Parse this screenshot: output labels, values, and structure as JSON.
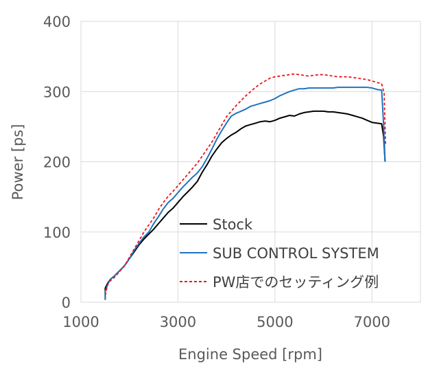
{
  "chart_data": {
    "type": "line",
    "xlabel": "Engine Speed [rpm]",
    "ylabel": "Power [ps]",
    "xlim": [
      1000,
      8000
    ],
    "ylim": [
      0,
      400
    ],
    "x_ticks": [
      "1000",
      "3000",
      "5000",
      "7000"
    ],
    "y_ticks": [
      "0",
      "100",
      "200",
      "300",
      "400"
    ],
    "grid": true,
    "legend_position": "bottom-right",
    "series": [
      {
        "name": "Stock",
        "color": "#000000",
        "dash": "solid",
        "points": [
          [
            1500,
            5
          ],
          [
            1500,
            20
          ],
          [
            1550,
            27
          ],
          [
            1600,
            32
          ],
          [
            1700,
            38
          ],
          [
            1800,
            45
          ],
          [
            1900,
            52
          ],
          [
            2000,
            62
          ],
          [
            2100,
            72
          ],
          [
            2200,
            82
          ],
          [
            2300,
            90
          ],
          [
            2400,
            97
          ],
          [
            2500,
            104
          ],
          [
            2600,
            112
          ],
          [
            2700,
            120
          ],
          [
            2800,
            128
          ],
          [
            2900,
            134
          ],
          [
            3000,
            142
          ],
          [
            3100,
            150
          ],
          [
            3200,
            157
          ],
          [
            3300,
            164
          ],
          [
            3400,
            172
          ],
          [
            3500,
            185
          ],
          [
            3600,
            196
          ],
          [
            3700,
            208
          ],
          [
            3800,
            218
          ],
          [
            3900,
            227
          ],
          [
            4000,
            233
          ],
          [
            4100,
            238
          ],
          [
            4200,
            242
          ],
          [
            4300,
            247
          ],
          [
            4400,
            251
          ],
          [
            4500,
            253
          ],
          [
            4600,
            255
          ],
          [
            4700,
            257
          ],
          [
            4800,
            258
          ],
          [
            4900,
            257
          ],
          [
            5000,
            259
          ],
          [
            5100,
            262
          ],
          [
            5200,
            264
          ],
          [
            5300,
            266
          ],
          [
            5400,
            265
          ],
          [
            5500,
            268
          ],
          [
            5600,
            270
          ],
          [
            5700,
            271
          ],
          [
            5800,
            272
          ],
          [
            5900,
            272
          ],
          [
            6000,
            272
          ],
          [
            6100,
            271
          ],
          [
            6200,
            271
          ],
          [
            6300,
            270
          ],
          [
            6400,
            269
          ],
          [
            6500,
            268
          ],
          [
            6600,
            266
          ],
          [
            6700,
            264
          ],
          [
            6800,
            262
          ],
          [
            6900,
            259
          ],
          [
            7000,
            256
          ],
          [
            7100,
            255
          ],
          [
            7200,
            254
          ],
          [
            7240,
            236
          ],
          [
            7270,
            200
          ]
        ]
      },
      {
        "name": "SUB CONTROL SYSTEM",
        "color": "#1e73be",
        "dash": "solid",
        "points": [
          [
            1500,
            3
          ],
          [
            1500,
            15
          ],
          [
            1550,
            25
          ],
          [
            1600,
            32
          ],
          [
            1700,
            38
          ],
          [
            1800,
            45
          ],
          [
            1900,
            52
          ],
          [
            2000,
            62
          ],
          [
            2100,
            74
          ],
          [
            2200,
            84
          ],
          [
            2300,
            93
          ],
          [
            2400,
            100
          ],
          [
            2500,
            112
          ],
          [
            2600,
            122
          ],
          [
            2700,
            133
          ],
          [
            2800,
            142
          ],
          [
            2900,
            148
          ],
          [
            3000,
            156
          ],
          [
            3100,
            164
          ],
          [
            3200,
            171
          ],
          [
            3300,
            178
          ],
          [
            3400,
            184
          ],
          [
            3500,
            193
          ],
          [
            3600,
            205
          ],
          [
            3700,
            218
          ],
          [
            3800,
            232
          ],
          [
            3900,
            244
          ],
          [
            4000,
            255
          ],
          [
            4100,
            265
          ],
          [
            4200,
            269
          ],
          [
            4300,
            272
          ],
          [
            4400,
            275
          ],
          [
            4500,
            279
          ],
          [
            4600,
            281
          ],
          [
            4700,
            283
          ],
          [
            4800,
            285
          ],
          [
            4900,
            287
          ],
          [
            5000,
            290
          ],
          [
            5100,
            294
          ],
          [
            5200,
            297
          ],
          [
            5300,
            300
          ],
          [
            5400,
            302
          ],
          [
            5500,
            304
          ],
          [
            5600,
            304
          ],
          [
            5700,
            305
          ],
          [
            5800,
            305
          ],
          [
            5900,
            305
          ],
          [
            6000,
            305
          ],
          [
            6100,
            305
          ],
          [
            6200,
            305
          ],
          [
            6300,
            306
          ],
          [
            6400,
            306
          ],
          [
            6500,
            306
          ],
          [
            6600,
            306
          ],
          [
            6700,
            306
          ],
          [
            6800,
            306
          ],
          [
            6900,
            306
          ],
          [
            7000,
            305
          ],
          [
            7100,
            303
          ],
          [
            7200,
            302
          ],
          [
            7240,
            252
          ],
          [
            7270,
            200
          ]
        ]
      },
      {
        "name": "PW店でのセッティング例",
        "color": "#e8141c",
        "dash": "dashed",
        "points": [
          [
            1500,
            10
          ],
          [
            1550,
            25
          ],
          [
            1600,
            30
          ],
          [
            1700,
            36
          ],
          [
            1800,
            44
          ],
          [
            1900,
            52
          ],
          [
            2000,
            64
          ],
          [
            2100,
            76
          ],
          [
            2200,
            88
          ],
          [
            2300,
            100
          ],
          [
            2400,
            110
          ],
          [
            2500,
            120
          ],
          [
            2600,
            132
          ],
          [
            2700,
            142
          ],
          [
            2800,
            151
          ],
          [
            2900,
            158
          ],
          [
            3000,
            166
          ],
          [
            3100,
            174
          ],
          [
            3200,
            182
          ],
          [
            3300,
            190
          ],
          [
            3400,
            198
          ],
          [
            3500,
            208
          ],
          [
            3600,
            218
          ],
          [
            3700,
            228
          ],
          [
            3800,
            240
          ],
          [
            3900,
            252
          ],
          [
            4000,
            264
          ],
          [
            4100,
            272
          ],
          [
            4200,
            280
          ],
          [
            4300,
            287
          ],
          [
            4400,
            294
          ],
          [
            4500,
            300
          ],
          [
            4600,
            306
          ],
          [
            4700,
            311
          ],
          [
            4800,
            315
          ],
          [
            4900,
            319
          ],
          [
            5000,
            321
          ],
          [
            5100,
            322
          ],
          [
            5200,
            323
          ],
          [
            5300,
            324
          ],
          [
            5400,
            325
          ],
          [
            5500,
            324
          ],
          [
            5600,
            323
          ],
          [
            5700,
            322
          ],
          [
            5800,
            323
          ],
          [
            5900,
            324
          ],
          [
            6000,
            324
          ],
          [
            6100,
            323
          ],
          [
            6200,
            322
          ],
          [
            6300,
            321
          ],
          [
            6400,
            321
          ],
          [
            6500,
            321
          ],
          [
            6600,
            320
          ],
          [
            6700,
            319
          ],
          [
            6800,
            318
          ],
          [
            6900,
            317
          ],
          [
            7000,
            315
          ],
          [
            7100,
            313
          ],
          [
            7200,
            311
          ],
          [
            7250,
            298
          ],
          [
            7280,
            225
          ]
        ]
      }
    ]
  }
}
